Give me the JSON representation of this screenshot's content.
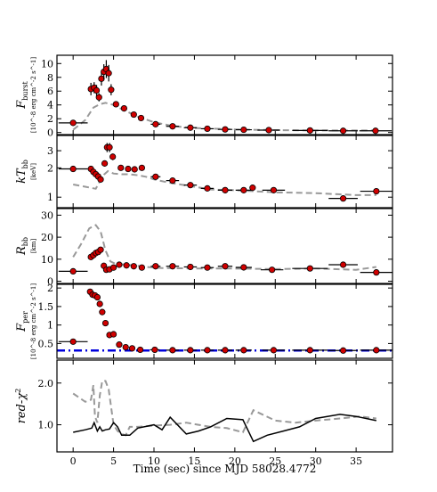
{
  "chart_data": {
    "type": "scatter",
    "x_label": "Time (sec) since MJD 58028.4772",
    "x_range": [
      -2,
      39.5
    ],
    "x_ticks": [
      "0",
      "5",
      "10",
      "15",
      "20",
      "25",
      "30",
      "35"
    ],
    "x_tick_values": [
      0,
      5,
      10,
      15,
      20,
      25,
      30,
      35
    ],
    "colors": {
      "marker": "#d00000",
      "model": "#999999",
      "persistent": "#0000dd",
      "redchi": "#000000"
    },
    "panels": [
      {
        "name": "F_burst",
        "y_label_main": "F",
        "y_label_sub": "burst",
        "y_unit": "[10^-8 erg cm^-2 s^-1]",
        "y_range": [
          -0.3,
          11.2
        ],
        "y_ticks": [
          "0",
          "2",
          "4",
          "6",
          "8",
          "10"
        ],
        "y_tick_values": [
          0,
          2,
          4,
          6,
          8,
          10
        ],
        "points": [
          {
            "x": 0,
            "y": 1.4,
            "xerr": 1.8,
            "yerr": 0.2
          },
          {
            "x": 2.2,
            "y": 6.3,
            "yerr": 0.9
          },
          {
            "x": 2.6,
            "y": 6.5,
            "yerr": 0.8
          },
          {
            "x": 2.9,
            "y": 6.1,
            "yerr": 0.8
          },
          {
            "x": 3.2,
            "y": 5.1,
            "yerr": 0.6
          },
          {
            "x": 3.5,
            "y": 7.8,
            "yerr": 1.0
          },
          {
            "x": 3.8,
            "y": 8.8,
            "yerr": 1.1
          },
          {
            "x": 4.1,
            "y": 9.2,
            "yerr": 1.3
          },
          {
            "x": 4.4,
            "y": 8.6,
            "yerr": 1.2
          },
          {
            "x": 4.7,
            "y": 6.2,
            "yerr": 0.8
          },
          {
            "x": 5.3,
            "y": 4.1,
            "yerr": 0.4
          },
          {
            "x": 6.3,
            "y": 3.5,
            "yerr": 0.4
          },
          {
            "x": 7.5,
            "y": 2.6,
            "yerr": 0.3
          },
          {
            "x": 8.4,
            "y": 2.1,
            "yerr": 0.3
          },
          {
            "x": 10.2,
            "y": 1.2,
            "xerr": 0.6,
            "yerr": 0.2
          },
          {
            "x": 12.3,
            "y": 0.9,
            "xerr": 0.8,
            "yerr": 0.15
          },
          {
            "x": 14.5,
            "y": 0.7,
            "xerr": 0.8,
            "yerr": 0.1
          },
          {
            "x": 16.6,
            "y": 0.55,
            "xerr": 0.8,
            "yerr": 0.1
          },
          {
            "x": 18.8,
            "y": 0.45,
            "xerr": 0.9,
            "yerr": 0.1
          },
          {
            "x": 21.1,
            "y": 0.4,
            "xerr": 1.0,
            "yerr": 0.1
          },
          {
            "x": 24.2,
            "y": 0.35,
            "xerr": 1.4,
            "yerr": 0.1
          },
          {
            "x": 29.3,
            "y": 0.3,
            "xerr": 2.2,
            "yerr": 0.1
          },
          {
            "x": 33.4,
            "y": 0.25,
            "xerr": 1.8,
            "yerr": 0.1
          },
          {
            "x": 37.4,
            "y": 0.25,
            "xerr": 2.0,
            "yerr": 0.1
          }
        ],
        "lines": [
          {
            "style": "dashed",
            "color": "#999999",
            "x": [
              0,
              1.5,
              2.5,
              3.3,
              4.0,
              5.0,
              6.0,
              8.0,
              10.0,
              12.5,
              15.0,
              20.0,
              25.0,
              30.0,
              35.0,
              37.5
            ],
            "y": [
              0.4,
              1.8,
              3.6,
              4.1,
              4.3,
              4.0,
              3.4,
              2.3,
              1.5,
              0.9,
              0.65,
              0.45,
              0.35,
              0.3,
              0.3,
              0.3
            ]
          }
        ]
      },
      {
        "name": "kT_bb",
        "y_label_main": "kT",
        "y_label_sub": "bb",
        "y_unit": "[keV]",
        "y_scale": "log",
        "y_range": [
          0.78,
          4.3
        ],
        "y_ticks": [
          "1",
          "2",
          "3"
        ],
        "y_tick_values": [
          1,
          2,
          3
        ],
        "points": [
          {
            "x": 0,
            "y": 1.95,
            "xerr": 1.8,
            "yerr": 0.05
          },
          {
            "x": 2.2,
            "y": 1.95,
            "yerr": 0.1
          },
          {
            "x": 2.5,
            "y": 1.82,
            "yerr": 0.1
          },
          {
            "x": 2.8,
            "y": 1.72,
            "yerr": 0.1
          },
          {
            "x": 3.1,
            "y": 1.63,
            "yerr": 0.1
          },
          {
            "x": 3.4,
            "y": 1.52,
            "yerr": 0.1
          },
          {
            "x": 3.9,
            "y": 2.22,
            "yerr": 0.15
          },
          {
            "x": 4.2,
            "y": 3.25,
            "yerr": 0.35
          },
          {
            "x": 4.5,
            "y": 3.25,
            "yerr": 0.35
          },
          {
            "x": 4.9,
            "y": 2.6,
            "yerr": 0.2
          },
          {
            "x": 5.9,
            "y": 2.0,
            "yerr": 0.1
          },
          {
            "x": 6.8,
            "y": 1.95,
            "yerr": 0.1
          },
          {
            "x": 7.6,
            "y": 1.93,
            "yerr": 0.1
          },
          {
            "x": 8.5,
            "y": 2.0,
            "yerr": 0.1
          },
          {
            "x": 10.2,
            "y": 1.62,
            "xerr": 0.6,
            "yerr": 0.08
          },
          {
            "x": 12.3,
            "y": 1.48,
            "xerr": 0.8,
            "yerr": 0.08
          },
          {
            "x": 14.5,
            "y": 1.33,
            "xerr": 0.8,
            "yerr": 0.08
          },
          {
            "x": 16.6,
            "y": 1.23,
            "xerr": 0.8,
            "yerr": 0.08
          },
          {
            "x": 18.8,
            "y": 1.18,
            "xerr": 0.9,
            "yerr": 0.08
          },
          {
            "x": 21.1,
            "y": 1.18,
            "xerr": 1.0,
            "yerr": 0.08
          },
          {
            "x": 22.2,
            "y": 1.25,
            "yerr": 0.08
          },
          {
            "x": 24.8,
            "y": 1.18,
            "xerr": 1.4,
            "yerr": 0.08
          },
          {
            "x": 33.4,
            "y": 0.97,
            "xerr": 1.8,
            "yerr": 0.06
          },
          {
            "x": 37.5,
            "y": 1.15,
            "xerr": 2.0,
            "yerr": 0.08
          }
        ],
        "lines": [
          {
            "style": "dashed",
            "color": "#999999",
            "x": [
              0,
              1.5,
              2.8,
              3.3,
              3.8,
              4.3,
              5.0,
              6.0,
              7.0,
              8.0,
              9.0,
              10.0,
              12.0,
              15.0,
              17.0,
              20.0,
              25.0,
              30.0,
              35.0,
              37.5
            ],
            "y": [
              1.35,
              1.28,
              1.22,
              1.45,
              1.7,
              1.85,
              1.75,
              1.72,
              1.72,
              1.68,
              1.62,
              1.52,
              1.4,
              1.28,
              1.2,
              1.18,
              1.12,
              1.1,
              1.05,
              1.05
            ]
          }
        ]
      },
      {
        "name": "R_bb",
        "y_label_main": "R",
        "y_label_sub": "bb",
        "y_unit": "[km]",
        "y_range": [
          -1,
          33
        ],
        "y_ticks": [
          "0",
          "10",
          "20",
          "30"
        ],
        "y_tick_values": [
          0,
          10,
          20,
          30
        ],
        "points": [
          {
            "x": 0,
            "y": 4.5,
            "xerr": 1.8,
            "yerr": 0.3
          },
          {
            "x": 2.2,
            "y": 11.0,
            "yerr": 0.8
          },
          {
            "x": 2.5,
            "y": 11.8,
            "yerr": 0.8
          },
          {
            "x": 2.8,
            "y": 12.8,
            "yerr": 0.8
          },
          {
            "x": 3.1,
            "y": 13.3,
            "yerr": 0.8
          },
          {
            "x": 3.4,
            "y": 14.3,
            "yerr": 0.9
          },
          {
            "x": 3.8,
            "y": 7.0,
            "yerr": 0.5
          },
          {
            "x": 4.1,
            "y": 5.2,
            "yerr": 0.4
          },
          {
            "x": 4.5,
            "y": 5.4,
            "yerr": 0.4
          },
          {
            "x": 5.0,
            "y": 6.2,
            "yerr": 0.4
          },
          {
            "x": 5.7,
            "y": 7.5,
            "yerr": 0.4
          },
          {
            "x": 6.6,
            "y": 7.2,
            "yerr": 0.4
          },
          {
            "x": 7.5,
            "y": 6.8,
            "yerr": 0.4
          },
          {
            "x": 8.5,
            "y": 6.2,
            "yerr": 0.4
          },
          {
            "x": 10.2,
            "y": 6.8,
            "xerr": 0.6,
            "yerr": 0.4
          },
          {
            "x": 12.3,
            "y": 6.8,
            "xerr": 0.8,
            "yerr": 0.4
          },
          {
            "x": 14.5,
            "y": 6.5,
            "xerr": 0.8,
            "yerr": 0.4
          },
          {
            "x": 16.6,
            "y": 6.2,
            "xerr": 0.8,
            "yerr": 0.4
          },
          {
            "x": 18.8,
            "y": 6.8,
            "xerr": 0.9,
            "yerr": 0.4
          },
          {
            "x": 21.1,
            "y": 6.3,
            "xerr": 1.0,
            "yerr": 0.4
          },
          {
            "x": 24.6,
            "y": 5.2,
            "xerr": 1.4,
            "yerr": 0.4
          },
          {
            "x": 29.3,
            "y": 5.8,
            "xerr": 2.2,
            "yerr": 0.4
          },
          {
            "x": 33.4,
            "y": 7.5,
            "xerr": 1.8,
            "yerr": 0.5
          },
          {
            "x": 37.5,
            "y": 4.0,
            "xerr": 2.0,
            "yerr": 0.4
          }
        ],
        "lines": [
          {
            "style": "dashed",
            "color": "#999999",
            "x": [
              0,
              1.0,
              2.0,
              2.8,
              3.4,
              4.0,
              4.6,
              5.2,
              5.8,
              6.5,
              7.5,
              9.0,
              11.0,
              13.0,
              15.0,
              18.0,
              21.0,
              25.0,
              30.0,
              35.0,
              37.5
            ],
            "y": [
              11.0,
              17.0,
              24.0,
              25.5,
              22.5,
              14.0,
              9.0,
              8.0,
              7.8,
              7.5,
              7.2,
              6.5,
              6.0,
              5.9,
              5.8,
              5.8,
              5.7,
              5.5,
              5.8,
              5.2,
              6.5
            ]
          }
        ]
      },
      {
        "name": "F_per",
        "y_label_main": "F",
        "y_label_sub": "per",
        "y_unit": "[10^-8 erg cm^-2 s^-1]",
        "y_range": [
          0.1,
          2.1
        ],
        "y_ticks": [
          "0.5",
          "1",
          "1.5",
          "2"
        ],
        "y_tick_values": [
          0.5,
          1,
          1.5,
          2
        ],
        "points": [
          {
            "x": 0,
            "y": 0.55,
            "xerr": 1.8,
            "yerr": 0.02
          },
          {
            "x": 2.1,
            "y": 1.9,
            "yerr": 0.05
          },
          {
            "x": 2.4,
            "y": 1.82,
            "yerr": 0.05
          },
          {
            "x": 2.7,
            "y": 1.8,
            "yerr": 0.05
          },
          {
            "x": 3.0,
            "y": 1.75,
            "yerr": 0.05
          },
          {
            "x": 3.3,
            "y": 1.57,
            "yerr": 0.05
          },
          {
            "x": 3.6,
            "y": 1.35,
            "yerr": 0.04
          },
          {
            "x": 4.0,
            "y": 1.05,
            "yerr": 0.04
          },
          {
            "x": 4.5,
            "y": 0.73,
            "yerr": 0.03
          },
          {
            "x": 5.0,
            "y": 0.75,
            "yerr": 0.03
          },
          {
            "x": 5.7,
            "y": 0.47,
            "yerr": 0.02
          },
          {
            "x": 6.5,
            "y": 0.4,
            "yerr": 0.02
          },
          {
            "x": 7.3,
            "y": 0.37,
            "yerr": 0.02
          },
          {
            "x": 8.3,
            "y": 0.33,
            "yerr": 0.02
          },
          {
            "x": 10.1,
            "y": 0.33,
            "xerr": 0.6,
            "yerr": 0.02
          },
          {
            "x": 12.3,
            "y": 0.32,
            "xerr": 0.8,
            "yerr": 0.02
          },
          {
            "x": 14.5,
            "y": 0.32,
            "xerr": 0.8,
            "yerr": 0.02
          },
          {
            "x": 16.6,
            "y": 0.32,
            "xerr": 0.8,
            "yerr": 0.02
          },
          {
            "x": 18.8,
            "y": 0.32,
            "xerr": 0.9,
            "yerr": 0.02
          },
          {
            "x": 21.1,
            "y": 0.32,
            "xerr": 1.0,
            "yerr": 0.02
          },
          {
            "x": 24.8,
            "y": 0.32,
            "xerr": 1.4,
            "yerr": 0.02
          },
          {
            "x": 29.3,
            "y": 0.32,
            "xerr": 2.2,
            "yerr": 0.02
          },
          {
            "x": 33.4,
            "y": 0.31,
            "xerr": 1.8,
            "yerr": 0.02
          },
          {
            "x": 37.5,
            "y": 0.32,
            "xerr": 2.0,
            "yerr": 0.02
          }
        ],
        "lines": [
          {
            "style": "dashdot",
            "color": "#0000dd",
            "x": [
              -2,
              39.5
            ],
            "y": [
              0.31,
              0.31
            ]
          }
        ]
      },
      {
        "name": "red-chi2",
        "y_label_main": "red-χ",
        "y_label_sub": "",
        "y_label_sup": "2",
        "y_unit": "",
        "y_range": [
          0.35,
          2.55
        ],
        "y_ticks": [
          "1.0",
          "2.0"
        ],
        "y_tick_values": [
          1.0,
          2.0
        ],
        "points": [],
        "lines": [
          {
            "style": "dashed",
            "color": "#999999",
            "x": [
              0,
              1.5,
              2.2,
              2.5,
              2.7,
              3.0,
              3.3,
              3.6,
              4.0,
              4.4,
              5.0,
              5.5,
              6.0,
              6.5,
              7.0,
              8.0,
              10.0,
              12.0,
              14.0,
              15.5,
              17.0,
              19.0,
              21.0,
              22.3,
              25.0,
              27.5,
              30.0,
              33.0,
              35.5,
              37.5
            ],
            "y": [
              1.75,
              1.55,
              1.6,
              1.95,
              1.2,
              1.05,
              1.7,
              2.05,
              2.05,
              1.85,
              1.0,
              0.85,
              0.78,
              0.75,
              0.95,
              0.95,
              0.98,
              1.0,
              1.05,
              1.0,
              0.95,
              0.92,
              0.82,
              1.35,
              1.1,
              1.05,
              1.1,
              1.15,
              1.2,
              1.15
            ]
          },
          {
            "style": "solid",
            "color": "#000000",
            "x": [
              0,
              1.5,
              2.3,
              2.6,
              3.0,
              3.3,
              3.6,
              4.0,
              4.5,
              5.0,
              5.5,
              6.0,
              7.0,
              8.0,
              10.0,
              11.0,
              12.0,
              14.0,
              15.5,
              17.0,
              19.0,
              21.0,
              22.3,
              24.0,
              26.0,
              28.0,
              30.0,
              33.0,
              35.0,
              37.5
            ],
            "y": [
              0.82,
              0.88,
              0.92,
              1.05,
              0.85,
              0.95,
              0.85,
              0.88,
              0.9,
              1.05,
              0.95,
              0.75,
              0.75,
              0.92,
              1.0,
              0.88,
              1.18,
              0.78,
              0.85,
              0.95,
              1.15,
              1.12,
              0.6,
              0.75,
              0.85,
              0.95,
              1.15,
              1.25,
              1.2,
              1.1
            ]
          }
        ]
      }
    ]
  }
}
